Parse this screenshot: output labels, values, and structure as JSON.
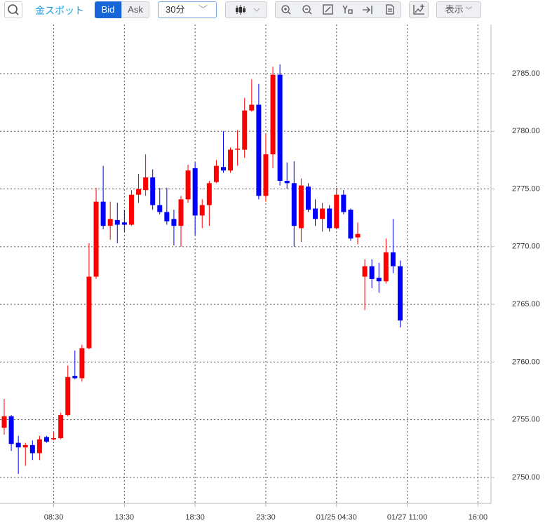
{
  "toolbar": {
    "instrument": "金スポット",
    "price_types": [
      "Bid",
      "Ask"
    ],
    "interval": "30分",
    "display": "表示"
  },
  "chart_data": {
    "type": "candlestick",
    "categories": [
      null,
      null,
      null,
      null,
      null,
      null,
      null,
      "08:30",
      null,
      null,
      null,
      null,
      null,
      null,
      null,
      null,
      null,
      "13:30",
      null,
      null,
      null,
      null,
      null,
      null,
      null,
      null,
      null,
      "18:30",
      null,
      null,
      null,
      null,
      null,
      null,
      null,
      null,
      null,
      "23:30",
      null,
      null,
      null,
      null,
      null,
      null,
      null,
      null,
      null,
      "01/25 04:30",
      null,
      null,
      null,
      null,
      null,
      null,
      null,
      null,
      null,
      "01/27 11:00",
      null,
      null,
      null,
      null,
      null,
      null,
      null,
      null,
      null,
      "16:00"
    ],
    "open": [
      2754.3,
      2755.3,
      2753.0,
      2752.6,
      2752.8,
      2752.1,
      2753.5,
      2753.3,
      2753.4,
      2755.4,
      2758.8,
      2758.6,
      2761.2,
      2767.4,
      2773.9,
      2771.8,
      2772.3,
      2772.1,
      2771.9,
      2774.5,
      2774.9,
      2776.0,
      2773.6,
      2773.0,
      2772.4,
      2771.8,
      2774.1,
      2776.8,
      2772.7,
      2773.6,
      2775.6,
      2776.9,
      2776.6,
      2778.4,
      2778.4,
      2781.8,
      2782.3,
      2774.4,
      2778.0,
      2784.9,
      2775.7,
      2775.5,
      2771.6,
      2775.2,
      2773.3,
      2772.4,
      2773.3,
      2771.6,
      2774.5,
      2773.2,
      2770.8,
      2767.4,
      2768.3,
      2767.3,
      2767.0,
      2769.5,
      2768.3,
      null,
      null,
      null,
      null,
      null,
      null,
      null,
      null,
      null,
      null,
      null
    ],
    "high": [
      2756.8,
      2755.4,
      2753.6,
      2753.0,
      2753.2,
      2753.6,
      2753.6,
      2753.9,
      2755.6,
      2759.7,
      2761.0,
      2761.5,
      2770.3,
      2775.1,
      2777.0,
      2773.9,
      2773.8,
      2773.2,
      2774.9,
      2776.3,
      2778.0,
      2776.7,
      2775.1,
      2775.1,
      2773.2,
      2774.4,
      2777.1,
      2777.3,
      2774.1,
      2775.7,
      2777.5,
      2780.0,
      2778.6,
      2780.1,
      2782.9,
      2784.5,
      2784.1,
      2779.8,
      2785.6,
      2785.8,
      2777.3,
      2777.4,
      2775.9,
      2775.5,
      2774.1,
      2773.8,
      2773.6,
      2775.1,
      2774.9,
      2773.3,
      2772.1,
      2768.9,
      2768.9,
      2768.6,
      2770.7,
      2772.4,
      2768.8,
      null,
      null,
      null,
      null,
      null,
      null,
      null,
      null,
      null,
      null,
      null
    ],
    "low": [
      2753.7,
      2752.3,
      2750.3,
      2751.0,
      2751.5,
      2751.5,
      2753.0,
      2753.2,
      2753.3,
      2755.3,
      2758.5,
      2758.3,
      2761.1,
      2767.2,
      2771.5,
      2770.6,
      2770.3,
      2771.3,
      2771.8,
      2773.8,
      2774.4,
      2773.2,
      2772.8,
      2771.9,
      2770.1,
      2770.0,
      2773.8,
      2771.0,
      2771.6,
      2771.8,
      2775.5,
      2776.4,
      2776.4,
      2777.0,
      2777.7,
      2781.7,
      2774.1,
      2773.9,
      2776.8,
      2775.3,
      2775.0,
      2770.0,
      2770.4,
      2773.0,
      2771.8,
      2771.3,
      2771.3,
      2771.5,
      2772.8,
      2770.5,
      2770.2,
      2764.5,
      2766.4,
      2766.0,
      2766.8,
      2767.7,
      2763.0,
      null,
      null,
      null,
      null,
      null,
      null,
      null,
      null,
      null,
      null,
      null
    ],
    "close": [
      2755.3,
      2752.9,
      2752.6,
      2752.8,
      2752.1,
      2753.3,
      2753.1,
      2753.4,
      2755.4,
      2758.7,
      2758.6,
      2761.2,
      2767.4,
      2773.9,
      2771.8,
      2772.4,
      2771.9,
      2771.9,
      2774.5,
      2775.0,
      2776.0,
      2773.6,
      2773.0,
      2772.2,
      2771.8,
      2774.1,
      2776.6,
      2772.7,
      2773.6,
      2775.5,
      2777.0,
      2776.6,
      2778.4,
      2778.5,
      2781.8,
      2782.3,
      2774.4,
      2778.0,
      2784.9,
      2775.7,
      2775.5,
      2771.8,
      2775.3,
      2773.2,
      2772.4,
      2773.3,
      2771.6,
      2774.5,
      2773.0,
      2770.7,
      2771.1,
      2768.3,
      2767.2,
      2767.0,
      2769.5,
      2768.3,
      2763.6,
      null,
      null,
      null,
      null,
      null,
      null,
      null,
      null,
      null,
      null,
      null
    ],
    "up_color": "#ff0000",
    "down_color": "#0000ff",
    "ylim": [
      2747.75,
      2789.25
    ],
    "yticks": [
      {
        "value": 2750,
        "label": "2750.00"
      },
      {
        "value": 2755,
        "label": "2755.00"
      },
      {
        "value": 2760,
        "label": "2760.00"
      },
      {
        "value": 2765,
        "label": "2765.00"
      },
      {
        "value": 2770,
        "label": "2770.00"
      },
      {
        "value": 2775,
        "label": "2775.00"
      },
      {
        "value": 2780,
        "label": "2780.00"
      },
      {
        "value": 2785,
        "label": "2785.00"
      }
    ],
    "grid": true
  }
}
